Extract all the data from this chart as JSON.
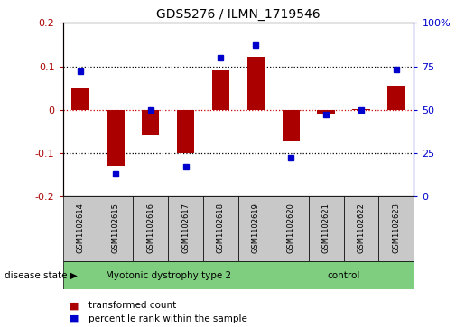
{
  "title": "GDS5276 / ILMN_1719546",
  "samples": [
    "GSM1102614",
    "GSM1102615",
    "GSM1102616",
    "GSM1102617",
    "GSM1102618",
    "GSM1102619",
    "GSM1102620",
    "GSM1102621",
    "GSM1102622",
    "GSM1102623"
  ],
  "red_values": [
    0.05,
    -0.13,
    -0.06,
    -0.1,
    0.09,
    0.122,
    -0.072,
    -0.012,
    0.002,
    0.055
  ],
  "blue_values": [
    72,
    13,
    50,
    17,
    80,
    87,
    22,
    47,
    50,
    73
  ],
  "ylim_left": [
    -0.2,
    0.2
  ],
  "ylim_right": [
    0,
    100
  ],
  "bar_color": "#aa0000",
  "dot_color": "#0000cc",
  "dotted_line_color": "#000000",
  "zero_line_color": "#cc0000",
  "group1_label": "Myotonic dystrophy type 2",
  "group2_label": "control",
  "group1_count": 6,
  "group2_count": 4,
  "group_color": "#7fce7f",
  "label_bg_color": "#c8c8c8",
  "disease_state_label": "disease state",
  "legend_red": "transformed count",
  "legend_blue": "percentile rank within the sample",
  "bar_width": 0.5
}
